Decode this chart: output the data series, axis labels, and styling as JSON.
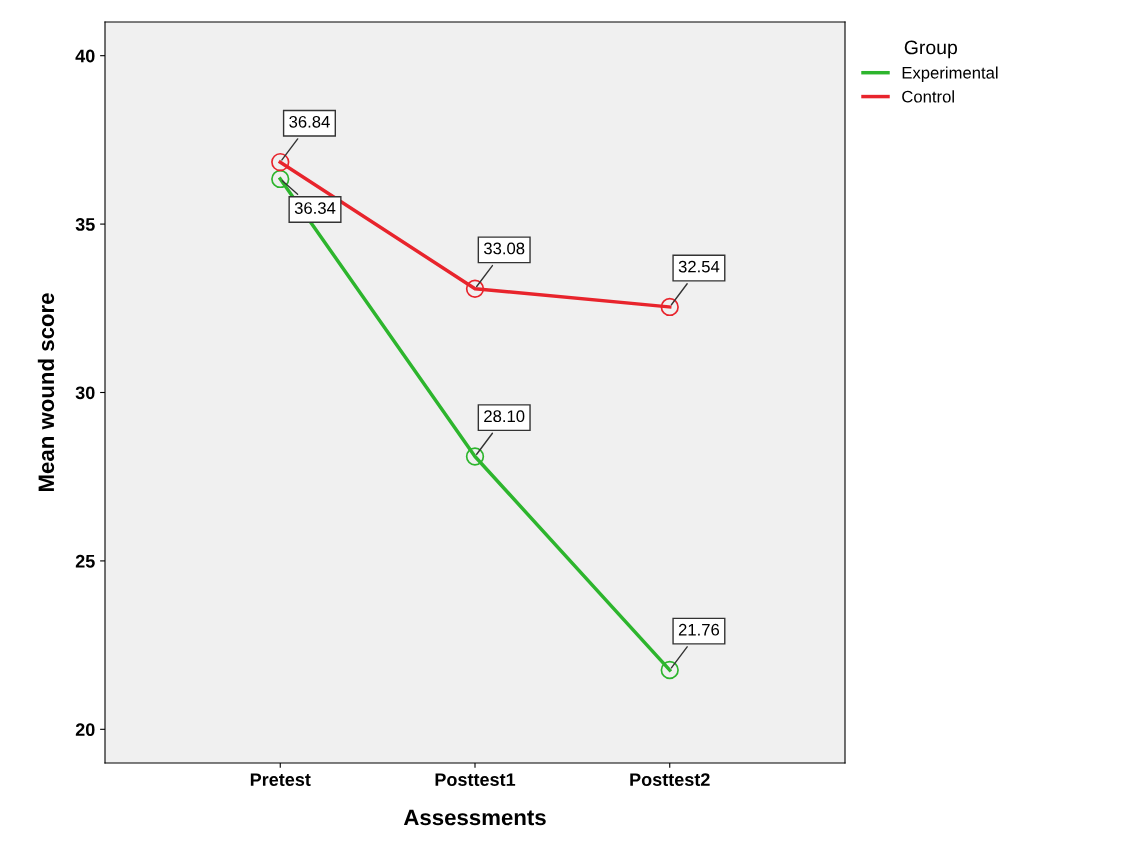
{
  "chart_data": {
    "type": "line",
    "xlabel": "Assessments",
    "ylabel": "Mean wound score",
    "categories": [
      "Pretest",
      "Posttest1",
      "Posttest2"
    ],
    "series": [
      {
        "name": "Experimental",
        "color": "#2db52d",
        "values": [
          36.34,
          28.1,
          21.76
        ],
        "value_labels": [
          "36.34",
          "28.10",
          "21.76"
        ]
      },
      {
        "name": "Control",
        "color": "#e8242c",
        "values": [
          36.84,
          33.08,
          32.54
        ],
        "value_labels": [
          "36.84",
          "33.08",
          "32.54"
        ]
      }
    ],
    "ylim": [
      19,
      41
    ],
    "yticks": [
      20,
      25,
      30,
      35,
      40
    ],
    "grid": false,
    "legend": "top right",
    "legend_title": "Group",
    "marker": "circle",
    "line_style": "solid"
  }
}
